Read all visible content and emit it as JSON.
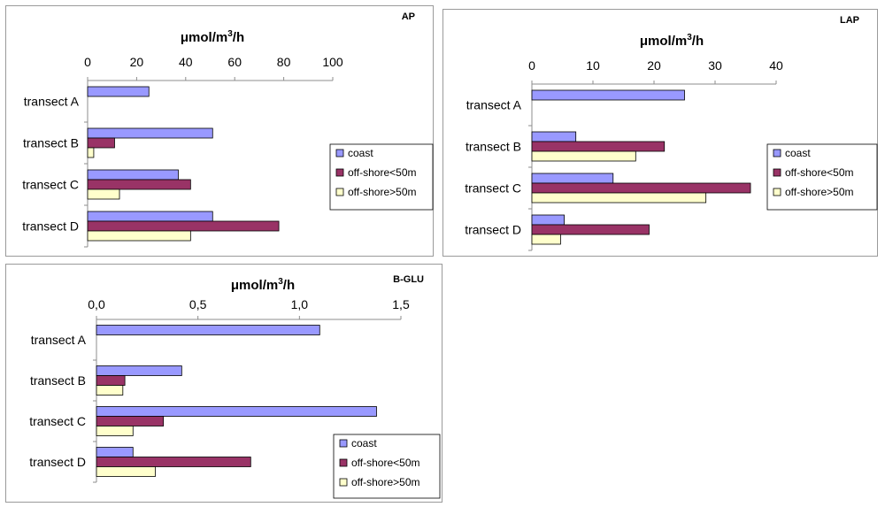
{
  "colors": {
    "coast": "#9999ff",
    "offshore_lt50": "#993366",
    "offshore_gt50": "#ffffcc"
  },
  "chart_data": [
    {
      "type": "bar",
      "orientation": "horizontal",
      "title": "AP",
      "xlabel": "μmol/m3/h",
      "xlabel_main": "μmol/m",
      "xlabel_sup": "3",
      "xlabel_tail": "/h",
      "xlim": [
        0,
        100
      ],
      "ticks": [
        "0",
        "20",
        "40",
        "60",
        "80",
        "100"
      ],
      "tick_values": [
        0,
        20,
        40,
        60,
        80,
        100
      ],
      "categories": [
        "transect A",
        "transect B",
        "transect C",
        "transect D"
      ],
      "legend": [
        "coast",
        "off-shore<50m",
        "off-shore>50m"
      ],
      "series": [
        {
          "name": "coast",
          "values": [
            25,
            51,
            37,
            51
          ]
        },
        {
          "name": "off-shore<50m",
          "values": [
            0,
            11,
            42,
            78
          ]
        },
        {
          "name": "off-shore>50m",
          "values": [
            0,
            2.5,
            13,
            42
          ]
        }
      ]
    },
    {
      "type": "bar",
      "orientation": "horizontal",
      "title": "LAP",
      "xlabel": "μmol/m3/h",
      "xlabel_main": "μmol/m",
      "xlabel_sup": "3",
      "xlabel_tail": "/h",
      "xlim": [
        0,
        40
      ],
      "ticks": [
        "0",
        "10",
        "20",
        "30",
        "40"
      ],
      "tick_values": [
        0,
        10,
        20,
        30,
        40
      ],
      "categories": [
        "transect A",
        "transect B",
        "transect C",
        "transect D"
      ],
      "legend": [
        "coast",
        "off-shore<50m",
        "off-shore>50m"
      ],
      "series": [
        {
          "name": "coast",
          "values": [
            25,
            7.2,
            13.3,
            5.3
          ]
        },
        {
          "name": "off-shore<50m",
          "values": [
            0,
            21.7,
            35.8,
            19.2
          ]
        },
        {
          "name": "off-shore>50m",
          "values": [
            0,
            17,
            28.5,
            4.7
          ]
        }
      ]
    },
    {
      "type": "bar",
      "orientation": "horizontal",
      "title": "B-GLU",
      "xlabel": "μmol/m3/h",
      "xlabel_main": "μmol/m",
      "xlabel_sup": "3",
      "xlabel_tail": "/h",
      "xlim": [
        0,
        1.5
      ],
      "ticks": [
        "0,0",
        "0,5",
        "1,0",
        "1,5"
      ],
      "tick_values": [
        0,
        0.5,
        1.0,
        1.5
      ],
      "categories": [
        "transect A",
        "transect B",
        "transect C",
        "transect D"
      ],
      "legend": [
        "coast",
        "off-shore<50m",
        "off-shore>50m"
      ],
      "series": [
        {
          "name": "coast",
          "values": [
            1.1,
            0.42,
            1.38,
            0.18
          ]
        },
        {
          "name": "off-shore<50m",
          "values": [
            0,
            0.14,
            0.33,
            0.76
          ]
        },
        {
          "name": "off-shore>50m",
          "values": [
            0,
            0.13,
            0.18,
            0.29
          ]
        }
      ]
    }
  ]
}
